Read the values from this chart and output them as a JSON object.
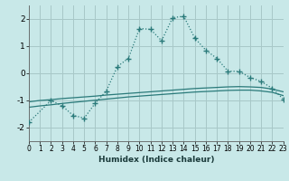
{
  "xlabel": "Humidex (Indice chaleur)",
  "bg_color": "#c8e8e8",
  "grid_color": "#a8c8c8",
  "line_color": "#2a7a7a",
  "xlim": [
    0,
    23
  ],
  "ylim": [
    -2.5,
    2.5
  ],
  "xticks": [
    0,
    1,
    2,
    3,
    4,
    5,
    6,
    7,
    8,
    9,
    10,
    11,
    12,
    13,
    14,
    15,
    16,
    17,
    18,
    19,
    20,
    21,
    22,
    23
  ],
  "yticks": [
    -2,
    -1,
    0,
    1,
    2
  ],
  "main_x": [
    0,
    2,
    3,
    4,
    5,
    6,
    7,
    8,
    9,
    10,
    11,
    12,
    13,
    14,
    15,
    16,
    17,
    18,
    19,
    20,
    21,
    22,
    23
  ],
  "main_y": [
    -1.8,
    -1.0,
    -1.2,
    -1.55,
    -1.65,
    -1.1,
    -0.65,
    0.25,
    0.55,
    1.65,
    1.62,
    1.2,
    2.05,
    2.1,
    1.3,
    0.85,
    0.55,
    0.08,
    0.07,
    -0.15,
    -0.3,
    -0.55,
    -0.95
  ],
  "line2_x": [
    0,
    1,
    2,
    3,
    4,
    5,
    6,
    7,
    8,
    9,
    10,
    11,
    12,
    13,
    14,
    15,
    16,
    17,
    18,
    19,
    20,
    21,
    22,
    23
  ],
  "line2_y": [
    -1.05,
    -1.0,
    -0.97,
    -0.93,
    -0.9,
    -0.87,
    -0.84,
    -0.8,
    -0.77,
    -0.74,
    -0.71,
    -0.68,
    -0.65,
    -0.62,
    -0.59,
    -0.56,
    -0.54,
    -0.52,
    -0.5,
    -0.49,
    -0.5,
    -0.52,
    -0.58,
    -0.68
  ],
  "line3_x": [
    0,
    1,
    2,
    3,
    4,
    5,
    6,
    7,
    8,
    9,
    10,
    11,
    12,
    13,
    14,
    15,
    16,
    17,
    18,
    19,
    20,
    21,
    22,
    23
  ],
  "line3_y": [
    -1.25,
    -1.2,
    -1.16,
    -1.11,
    -1.07,
    -1.03,
    -0.99,
    -0.95,
    -0.91,
    -0.87,
    -0.84,
    -0.81,
    -0.78,
    -0.75,
    -0.72,
    -0.69,
    -0.67,
    -0.65,
    -0.63,
    -0.62,
    -0.62,
    -0.65,
    -0.7,
    -0.82
  ]
}
